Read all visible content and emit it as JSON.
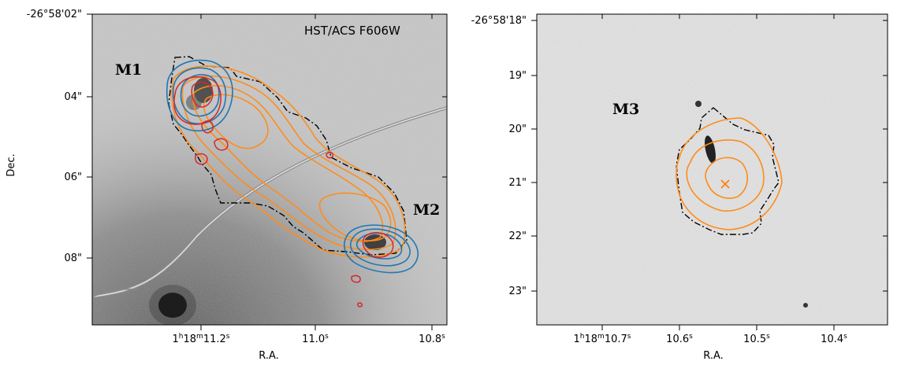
{
  "left_panel": {
    "instrument_label": "HST/ACS F606W",
    "ylabel": "Dec.",
    "xlabel": "R.A.",
    "dec_ticks": [
      "-26°58'02\"",
      "04\"",
      "06\"",
      "08\""
    ],
    "ra_ticks": [
      {
        "main": "1",
        "h": "h",
        "mid": "18",
        "m": "m",
        "tail": "11.2",
        "s": "s"
      },
      {
        "main": "11.0",
        "s": "s"
      },
      {
        "main": "10.8",
        "s": "s"
      }
    ],
    "sources": [
      "M1",
      "M2"
    ]
  },
  "right_panel": {
    "xlabel": "R.A.",
    "dec_ticks": [
      "-26°58'18\"",
      "19\"",
      "20\"",
      "21\"",
      "22\"",
      "23\""
    ],
    "ra_ticks": [
      {
        "main": "1",
        "h": "h",
        "mid": "18",
        "m": "m",
        "tail": "10.7",
        "s": "s"
      },
      {
        "main": "10.6",
        "s": "s"
      },
      {
        "main": "10.5",
        "s": "s"
      },
      {
        "main": "10.4",
        "s": "s"
      }
    ],
    "sources": [
      "M3"
    ]
  },
  "colors": {
    "orange_contour": "#ff8c1a",
    "blue_contour": "#1f77b4",
    "red_contour": "#d62728",
    "lens_curve": "#8c8c8c",
    "marker": "#ff7f0e"
  }
}
